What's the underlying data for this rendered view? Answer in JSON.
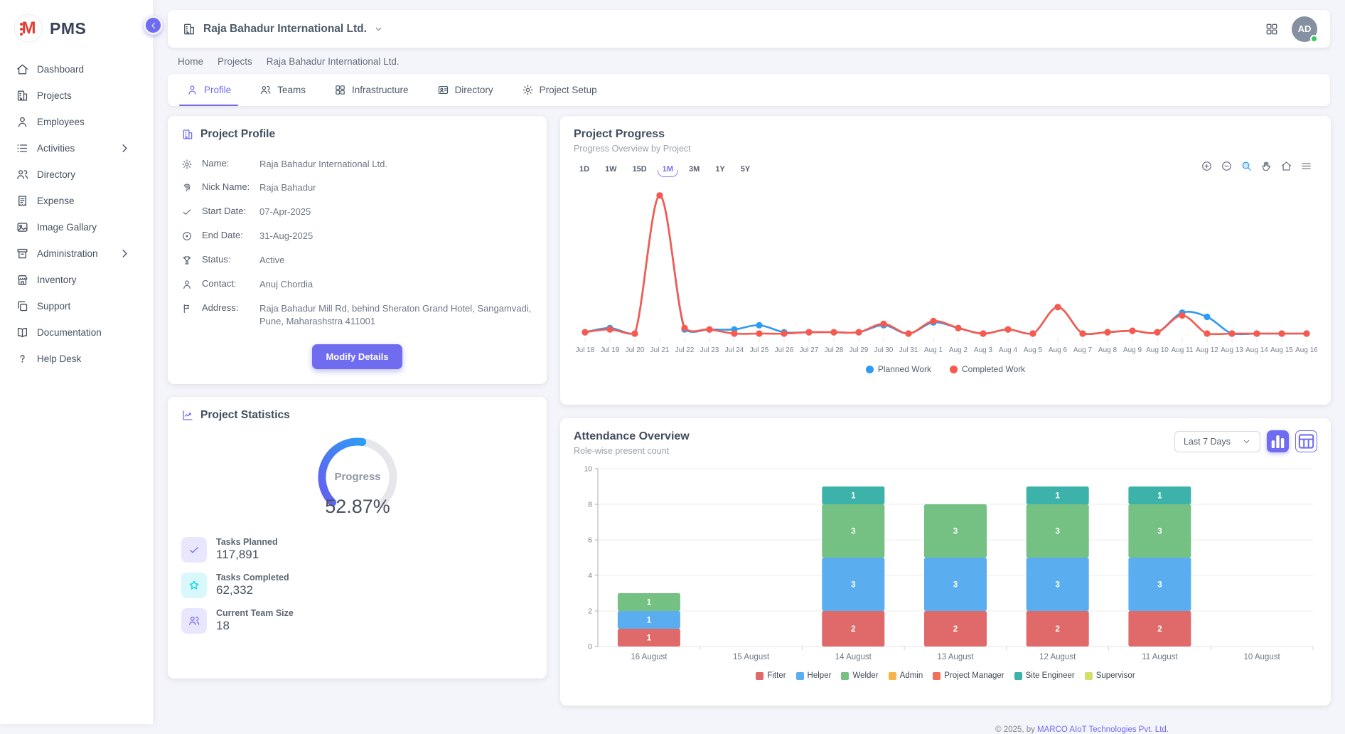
{
  "app": {
    "logo_text": "PMS"
  },
  "sidebar": {
    "items": [
      {
        "label": "Dashboard",
        "icon": "home",
        "chevron": false
      },
      {
        "label": "Projects",
        "icon": "building",
        "chevron": false
      },
      {
        "label": "Employees",
        "icon": "person",
        "chevron": false
      },
      {
        "label": "Activities",
        "icon": "list",
        "chevron": true
      },
      {
        "label": "Directory",
        "icon": "people",
        "chevron": false
      },
      {
        "label": "Expense",
        "icon": "receipt",
        "chevron": false
      },
      {
        "label": "Image Gallary",
        "icon": "image",
        "chevron": false
      },
      {
        "label": "Administration",
        "icon": "archive",
        "chevron": true
      },
      {
        "label": "Inventory",
        "icon": "store",
        "chevron": false
      },
      {
        "label": "Support",
        "icon": "copy",
        "chevron": false
      },
      {
        "label": "Documentation",
        "icon": "book",
        "chevron": false
      },
      {
        "label": "Help Desk",
        "icon": "question",
        "chevron": false
      }
    ]
  },
  "header": {
    "company": "Raja Bahadur International Ltd.",
    "company_icon": "building",
    "apps_icon": "grid",
    "avatar": {
      "initials": "AD",
      "status_color": "#38c75c"
    }
  },
  "breadcrumb": {
    "items": [
      "Home",
      "Projects",
      "Raja Bahadur International Ltd."
    ]
  },
  "tabs": [
    {
      "label": "Profile",
      "icon": "person",
      "active": true
    },
    {
      "label": "Teams",
      "icon": "people",
      "active": false
    },
    {
      "label": "Infrastructure",
      "icon": "grid",
      "active": false
    },
    {
      "label": "Directory",
      "icon": "card-person",
      "active": false
    },
    {
      "label": "Project Setup",
      "icon": "gear",
      "active": false
    }
  ],
  "profile_card": {
    "title": "Project Profile",
    "title_icon": "building",
    "fields": [
      {
        "icon": "gear",
        "label": "Name:",
        "value": "Raja Bahadur International Ltd."
      },
      {
        "icon": "fingerprint",
        "label": "Nick Name:",
        "value": "Raja Bahadur"
      },
      {
        "icon": "check",
        "label": "Start Date:",
        "value": "07-Apr-2025"
      },
      {
        "icon": "circle-dot",
        "label": "End Date:",
        "value": "31-Aug-2025"
      },
      {
        "icon": "trophy",
        "label": "Status:",
        "value": "Active"
      },
      {
        "icon": "person",
        "label": "Contact:",
        "value": "Anuj Chordia"
      },
      {
        "icon": "flag",
        "label": "Address:",
        "value": "Raja Bahadur Mill Rd, behind Sheraton Grand Hotel, Sangamvadi, Pune, Maharashstra 411001"
      }
    ],
    "button_label": "Modify Details"
  },
  "stats_card": {
    "title": "Project Statistics",
    "title_icon": "chart-line",
    "gauge": {
      "label": "Progress",
      "value_text": "52.87%",
      "percent": 52.87,
      "track_color": "#e5e7ea",
      "start_color": "#655df0",
      "end_color": "#2e9bf5"
    },
    "stats": [
      {
        "icon": "check",
        "label": "Tasks Planned",
        "value": "117,891",
        "icon_bg": "#e9e7fd",
        "icon_color": "#7367f0"
      },
      {
        "icon": "star",
        "label": "Tasks Completed",
        "value": "62,332",
        "icon_bg": "#d9f8fc",
        "icon_color": "#00cfe8"
      },
      {
        "icon": "people",
        "label": "Current Team Size",
        "value": "18",
        "icon_bg": "#e9e7fd",
        "icon_color": "#7367f0"
      }
    ]
  },
  "progress_card": {
    "title": "Project Progress",
    "subtitle": "Progress Overview by Project",
    "ranges": [
      {
        "label": "1D",
        "active": false
      },
      {
        "label": "1W",
        "active": false
      },
      {
        "label": "15D",
        "active": false
      },
      {
        "label": "1M",
        "active": true
      },
      {
        "label": "3M",
        "active": false
      },
      {
        "label": "1Y",
        "active": false
      },
      {
        "label": "5Y",
        "active": false
      }
    ],
    "toolbar_icons": [
      "circle-plus",
      "circle-minus",
      "magnifier",
      "hand",
      "home",
      "menu"
    ],
    "chart_data": {
      "type": "line",
      "x": [
        "Jul 18",
        "Jul 19",
        "Jul 20",
        "Jul 21",
        "Jul 22",
        "Jul 23",
        "Jul 24",
        "Jul 25",
        "Jul 26",
        "Jul 27",
        "Jul 28",
        "Jul 29",
        "Jul 30",
        "Jul 31",
        "Aug 1",
        "Aug 2",
        "Aug 3",
        "Aug 4",
        "Aug 5",
        "Aug 6",
        "Aug 7",
        "Aug 8",
        "Aug 9",
        "Aug 10",
        "Aug 11",
        "Aug 12",
        "Aug 13",
        "Aug 14",
        "Aug 15",
        "Aug 16"
      ],
      "series": [
        {
          "name": "Planned Work",
          "color": "#2e9bf5",
          "values": [
            2,
            5,
            1,
            100,
            4,
            4,
            4,
            7,
            2,
            2,
            2,
            2,
            7,
            1,
            9,
            5,
            1,
            4,
            1,
            20,
            1,
            2,
            3,
            2,
            16,
            13,
            1,
            1,
            1,
            1
          ]
        },
        {
          "name": "Completed Work",
          "color": "#f9594c",
          "values": [
            2,
            4,
            1,
            100,
            5,
            4,
            1,
            1,
            1,
            2,
            2,
            2,
            8,
            1,
            10,
            5,
            1,
            4,
            1,
            20,
            1,
            2,
            3,
            2,
            14,
            1,
            1,
            1,
            1,
            1
          ]
        }
      ],
      "ylim": [
        0,
        105
      ],
      "grid": false,
      "legend_position": "bottom"
    }
  },
  "attendance_card": {
    "title": "Attendance Overview",
    "subtitle": "Role-wise present count",
    "filter_value": "Last 7 Days",
    "view_toggles": [
      {
        "icon": "bar-chart",
        "active": true
      },
      {
        "icon": "table-grid",
        "active": false
      }
    ],
    "chart_data": {
      "type": "bar",
      "stacked": true,
      "categories": [
        "16 August",
        "15 August",
        "14 August",
        "13 August",
        "12 August",
        "11 August",
        "10 August"
      ],
      "series": [
        {
          "name": "Fitter",
          "color": "#e06a6a",
          "values": [
            1,
            0,
            2,
            2,
            2,
            2,
            0
          ]
        },
        {
          "name": "Helper",
          "color": "#5aaef0",
          "values": [
            1,
            0,
            3,
            3,
            3,
            3,
            0
          ]
        },
        {
          "name": "Welder",
          "color": "#75c083",
          "values": [
            1,
            0,
            3,
            3,
            3,
            3,
            0
          ]
        },
        {
          "name": "Admin",
          "color": "#f6b44b",
          "values": [
            0,
            0,
            0,
            0,
            0,
            0,
            0
          ]
        },
        {
          "name": "Project Manager",
          "color": "#f2705a",
          "values": [
            0,
            0,
            0,
            0,
            0,
            0,
            0
          ]
        },
        {
          "name": "Site Engineer",
          "color": "#3cb2ab",
          "values": [
            0,
            0,
            1,
            0,
            1,
            1,
            0
          ]
        },
        {
          "name": "Supervisor",
          "color": "#d4de6b",
          "values": [
            0,
            0,
            0,
            0,
            0,
            0,
            0
          ]
        }
      ],
      "ylim": [
        0,
        10
      ],
      "yticks": [
        0,
        2,
        4,
        6,
        8,
        10
      ],
      "legend_position": "bottom"
    }
  },
  "footer": {
    "prefix": "© 2025, by ",
    "company": "MARCO AIoT Technologies Pvt. Ltd."
  }
}
